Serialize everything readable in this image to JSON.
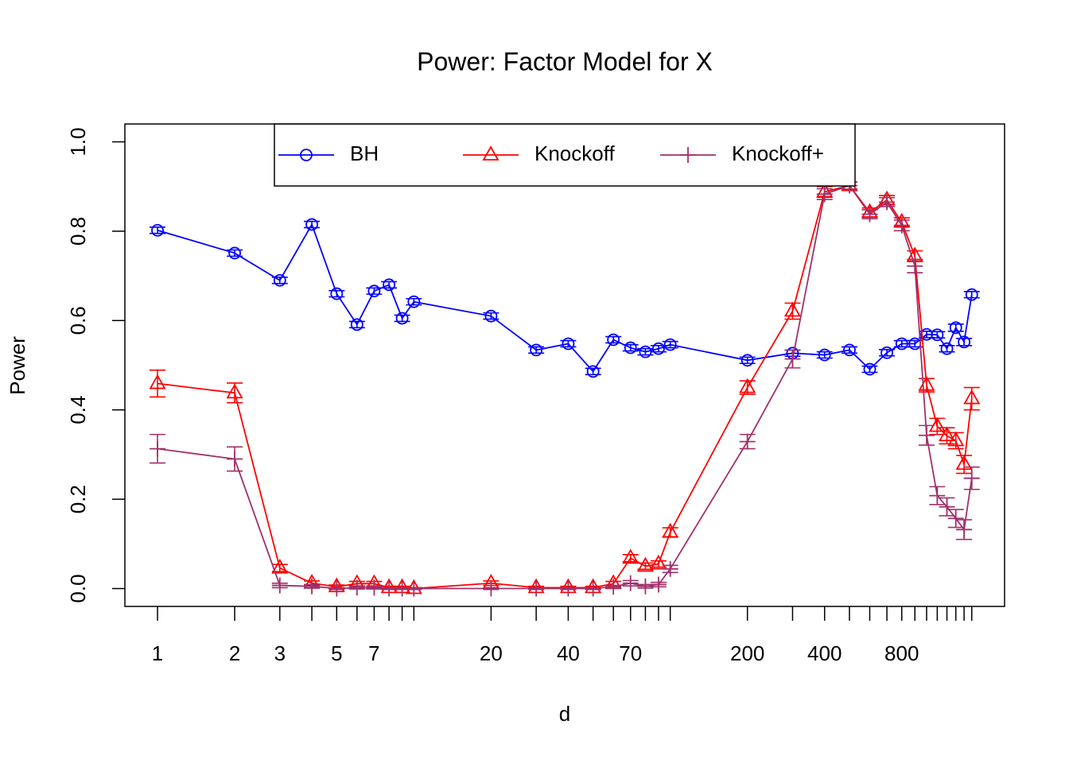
{
  "chart_data": {
    "type": "line",
    "title": "Power: Factor Model for X",
    "x_label": "d",
    "y_label": "Power",
    "x_scale": "log",
    "legend": "top",
    "x": [
      1,
      2,
      3,
      4,
      5,
      6,
      7,
      8,
      9,
      10,
      20,
      30,
      40,
      50,
      60,
      70,
      80,
      90,
      100,
      200,
      300,
      400,
      500,
      600,
      700,
      800,
      900,
      1000,
      1100,
      1200,
      1300,
      1400,
      1500
    ],
    "xlim": [
      0.746,
      2014
    ],
    "xticks": [
      1,
      2,
      3,
      5,
      7,
      20,
      40,
      70,
      200,
      400,
      800
    ],
    "ylim": [
      -0.04,
      1.04
    ],
    "yticks": [
      {
        "value": 0,
        "label": "0.0"
      },
      0.2,
      0.4,
      0.6,
      0.8,
      {
        "value": 1,
        "label": "1.0"
      }
    ],
    "series": [
      {
        "name": "BH",
        "color": "#0000ff",
        "marker": "circle",
        "values": [
          0.802,
          0.751,
          0.69,
          0.815,
          0.66,
          0.591,
          0.666,
          0.68,
          0.605,
          0.642,
          0.61,
          0.534,
          0.548,
          0.486,
          0.557,
          0.539,
          0.53,
          0.537,
          0.546,
          0.511,
          0.527,
          0.523,
          0.534,
          0.491,
          0.528,
          0.548,
          0.548,
          0.569,
          0.568,
          0.537,
          0.584,
          0.552,
          0.658
        ],
        "errors": [
          0.007,
          0.007,
          0.007,
          0.007,
          0.007,
          0.007,
          0.007,
          0.007,
          0.007,
          0.007,
          0.007,
          0.007,
          0.007,
          0.007,
          0.007,
          0.007,
          0.007,
          0.007,
          0.007,
          0.007,
          0.007,
          0.007,
          0.007,
          0.007,
          0.007,
          0.007,
          0.007,
          0.007,
          0.007,
          0.007,
          0.008,
          0.008,
          0.007
        ]
      },
      {
        "name": "Knockoff",
        "color": "#ff0000",
        "marker": "triangle",
        "values": [
          0.459,
          0.438,
          0.046,
          0.012,
          0.004,
          0.011,
          0.011,
          0.002,
          0.002,
          0,
          0.012,
          0.002,
          0.002,
          0.002,
          0.011,
          0.068,
          0.05,
          0.055,
          0.126,
          0.45,
          0.621,
          0.888,
          0.902,
          0.842,
          0.87,
          0.82,
          0.744,
          0.455,
          0.363,
          0.342,
          0.331,
          0.278,
          0.425
        ],
        "errors": [
          0.03,
          0.022,
          0.008,
          0.005,
          0.004,
          0.005,
          0.005,
          0.003,
          0.003,
          0.002,
          0.005,
          0.003,
          0.003,
          0.003,
          0.005,
          0.008,
          0.007,
          0.007,
          0.01,
          0.015,
          0.018,
          0.012,
          0.008,
          0.01,
          0.01,
          0.01,
          0.012,
          0.015,
          0.018,
          0.018,
          0.018,
          0.02,
          0.025
        ]
      },
      {
        "name": "Knockoff+",
        "color": "#a0306a",
        "marker": "plus",
        "values": [
          0.313,
          0.29,
          0.007,
          0.005,
          0,
          0.002,
          0.002,
          0,
          0,
          0,
          0,
          0,
          0,
          0,
          0.004,
          0.012,
          0.005,
          0.009,
          0.044,
          0.329,
          0.514,
          0.883,
          0.902,
          0.838,
          0.865,
          0.813,
          0.722,
          0.343,
          0.208,
          0.183,
          0.157,
          0.132,
          0.247
        ],
        "errors": [
          0.032,
          0.027,
          0.005,
          0.004,
          0.002,
          0.003,
          0.003,
          0.002,
          0.002,
          0.002,
          0.002,
          0.002,
          0.002,
          0.002,
          0.003,
          0.006,
          0.004,
          0.005,
          0.008,
          0.016,
          0.02,
          0.012,
          0.008,
          0.01,
          0.01,
          0.012,
          0.015,
          0.022,
          0.02,
          0.02,
          0.02,
          0.022,
          0.025
        ]
      }
    ]
  }
}
